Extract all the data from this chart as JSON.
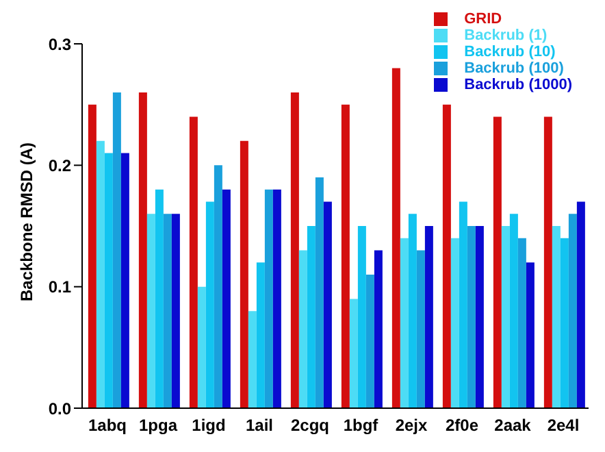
{
  "chart_data": {
    "type": "bar",
    "ylabel": "Backbone RMSD (A)",
    "categories": [
      "1abq",
      "1pga",
      "1igd",
      "1ail",
      "2cgq",
      "1bgf",
      "2ejx",
      "2f0e",
      "2aak",
      "2e4l"
    ],
    "series": [
      {
        "name": "GRID",
        "color": "#d40f0f",
        "values": [
          0.25,
          0.26,
          0.24,
          0.22,
          0.26,
          0.25,
          0.28,
          0.25,
          0.24,
          0.24
        ]
      },
      {
        "name": "Backrub (1)",
        "color": "#4ddcf5",
        "values": [
          0.22,
          0.16,
          0.1,
          0.08,
          0.13,
          0.09,
          0.14,
          0.14,
          0.15,
          0.15
        ]
      },
      {
        "name": "Backrub (10)",
        "color": "#12c4f0",
        "values": [
          0.21,
          0.18,
          0.17,
          0.12,
          0.15,
          0.15,
          0.16,
          0.17,
          0.16,
          0.14
        ]
      },
      {
        "name": "Backrub (100)",
        "color": "#1aa0dc",
        "values": [
          0.26,
          0.16,
          0.2,
          0.18,
          0.19,
          0.11,
          0.13,
          0.15,
          0.14,
          0.16
        ]
      },
      {
        "name": "Backrub (1000)",
        "color": "#0a0ad0",
        "values": [
          0.21,
          0.16,
          0.18,
          0.18,
          0.17,
          0.13,
          0.15,
          0.15,
          0.12,
          0.17
        ]
      }
    ],
    "ylim": [
      0,
      0.3
    ],
    "yticks": [
      {
        "value": 0,
        "label": "0.0"
      },
      {
        "value": 0.1,
        "label": "0.1"
      },
      {
        "value": 0.2,
        "label": "0.2"
      },
      {
        "value": 0.3,
        "label": "0.3"
      }
    ],
    "grid": false,
    "legend": "top right"
  }
}
